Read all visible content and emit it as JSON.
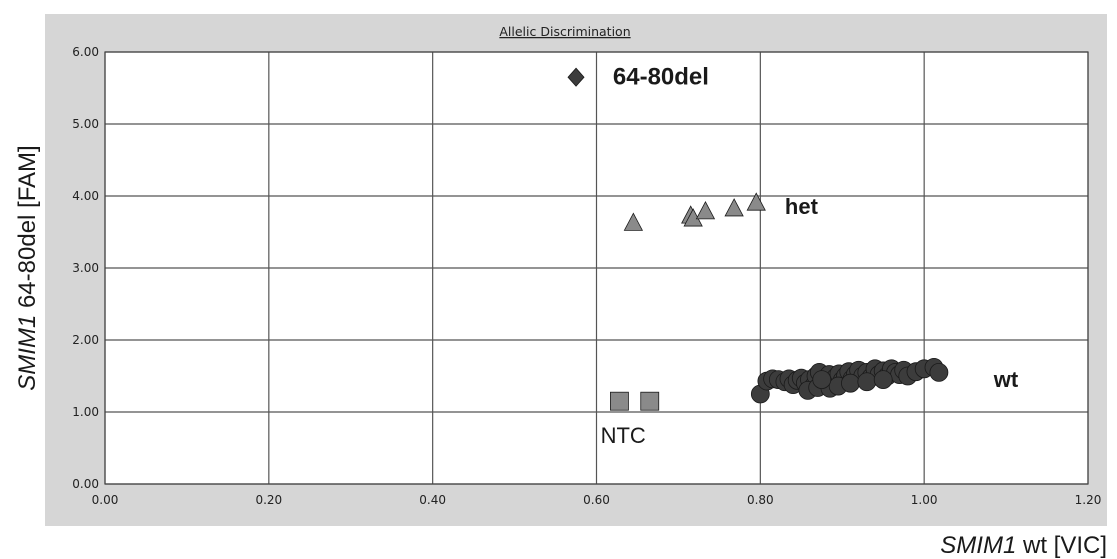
{
  "chart_data": {
    "type": "scatter",
    "title": "Allelic Discrimination",
    "xlabel_italic": "SMIM1",
    "xlabel_rest": " wt [VIC]",
    "ylabel_italic": "SMIM1",
    "ylabel_rest": " 64-80del [FAM]",
    "xlim": [
      0,
      1.2
    ],
    "ylim": [
      0,
      6
    ],
    "xticks": [
      "0.00",
      "0.20",
      "0.40",
      "0.60",
      "0.80",
      "1.00",
      "1.20"
    ],
    "yticks": [
      "0.00",
      "1.00",
      "2.00",
      "3.00",
      "4.00",
      "5.00",
      "6.00"
    ],
    "grid": true,
    "colors": {
      "outer_frame": "#d6d6d6",
      "plot_bg": "#ffffff",
      "grid": "#555555",
      "marker_dark": "#3c3c3c",
      "marker_gray": "#8a8a8a",
      "marker_stroke": "#1a1a1a"
    },
    "series": [
      {
        "marker": "diamond",
        "points": [
          [
            0.575,
            5.65
          ]
        ]
      },
      {
        "marker": "triangle",
        "points": [
          [
            0.645,
            3.62
          ],
          [
            0.715,
            3.72
          ],
          [
            0.718,
            3.68
          ],
          [
            0.733,
            3.78
          ],
          [
            0.768,
            3.82
          ],
          [
            0.795,
            3.9
          ]
        ]
      },
      {
        "marker": "square",
        "points": [
          [
            0.628,
            1.15
          ],
          [
            0.665,
            1.15
          ]
        ]
      },
      {
        "marker": "circle",
        "points": [
          [
            0.8,
            1.25
          ],
          [
            0.808,
            1.43
          ],
          [
            0.815,
            1.46
          ],
          [
            0.822,
            1.45
          ],
          [
            0.83,
            1.42
          ],
          [
            0.835,
            1.46
          ],
          [
            0.84,
            1.38
          ],
          [
            0.845,
            1.44
          ],
          [
            0.85,
            1.47
          ],
          [
            0.855,
            1.4
          ],
          [
            0.86,
            1.45
          ],
          [
            0.865,
            1.36
          ],
          [
            0.868,
            1.5
          ],
          [
            0.872,
            1.55
          ],
          [
            0.876,
            1.42
          ],
          [
            0.88,
            1.47
          ],
          [
            0.884,
            1.52
          ],
          [
            0.888,
            1.38
          ],
          [
            0.892,
            1.48
          ],
          [
            0.896,
            1.53
          ],
          [
            0.9,
            1.44
          ],
          [
            0.904,
            1.5
          ],
          [
            0.908,
            1.56
          ],
          [
            0.912,
            1.46
          ],
          [
            0.916,
            1.52
          ],
          [
            0.92,
            1.58
          ],
          [
            0.925,
            1.5
          ],
          [
            0.93,
            1.55
          ],
          [
            0.935,
            1.48
          ],
          [
            0.94,
            1.6
          ],
          [
            0.945,
            1.52
          ],
          [
            0.95,
            1.57
          ],
          [
            0.955,
            1.5
          ],
          [
            0.96,
            1.6
          ],
          [
            0.965,
            1.55
          ],
          [
            0.97,
            1.52
          ],
          [
            0.975,
            1.58
          ],
          [
            0.98,
            1.5
          ],
          [
            0.99,
            1.56
          ],
          [
            1.0,
            1.6
          ],
          [
            1.012,
            1.62
          ],
          [
            1.018,
            1.55
          ],
          [
            0.858,
            1.3
          ],
          [
            0.87,
            1.34
          ],
          [
            0.885,
            1.33
          ],
          [
            0.895,
            1.36
          ],
          [
            0.91,
            1.4
          ],
          [
            0.93,
            1.42
          ],
          [
            0.95,
            1.45
          ],
          [
            0.875,
            1.45
          ]
        ]
      }
    ],
    "annotations": [
      {
        "text": "64-80del",
        "x": 0.62,
        "y": 5.55,
        "weight": "bold",
        "size": 24
      },
      {
        "text": "het",
        "x": 0.83,
        "y": 3.75,
        "weight": "bold",
        "size": 22
      },
      {
        "text": "NTC",
        "x": 0.605,
        "y": 0.57,
        "weight": "normal",
        "size": 22
      },
      {
        "text": "wt",
        "x": 1.085,
        "y": 1.35,
        "weight": "bold",
        "size": 22
      }
    ]
  }
}
